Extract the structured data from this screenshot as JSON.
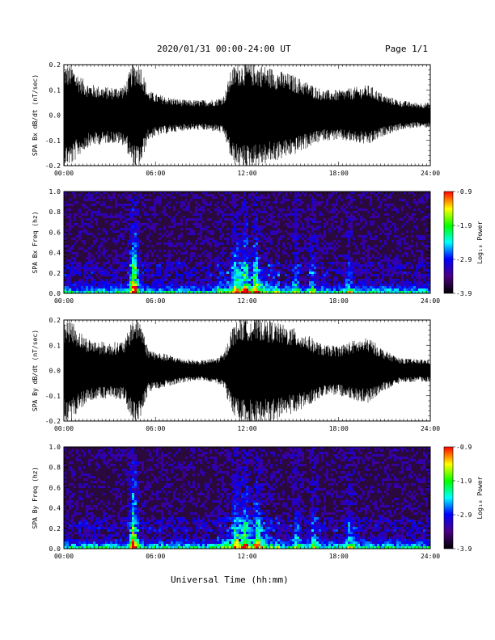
{
  "header": {
    "date_range": "2020/01/31  00:00-24:00 UT",
    "page": "Page 1/1"
  },
  "xaxis_title": "Universal Time (hh:mm)",
  "x_tick_labels": [
    "00:00",
    "06:00",
    "12:00",
    "18:00",
    "24:00"
  ],
  "colors": {
    "trace": "#000000",
    "spectrogram_background": "#2a0a3c",
    "colorbar": [
      "#000000",
      "#4b0082",
      "#0000ff",
      "#00ffff",
      "#00ff00",
      "#ffff00",
      "#ff0000"
    ]
  },
  "chart_data": [
    {
      "type": "line",
      "ylabel": "SPA Bx dB/dt (nT/sec)",
      "xlim": [
        0,
        24
      ],
      "ylim": [
        -0.2,
        0.2
      ],
      "yticks": [
        -0.2,
        -0.1,
        0.0,
        0.1,
        0.2
      ],
      "ytick_labels": [
        "-0.2",
        "-0.1",
        "0.0",
        "0.1",
        "0.2"
      ],
      "amplitude_envelope": {
        "x_hours": [
          0,
          0.5,
          1,
          1.5,
          2,
          3,
          4,
          4.5,
          5,
          5.5,
          6,
          7,
          8,
          9,
          10,
          10.5,
          11,
          11.5,
          12,
          13,
          14,
          15,
          16,
          17,
          18,
          19,
          20,
          21,
          22,
          23,
          24
        ],
        "half_range": [
          0.2,
          0.2,
          0.16,
          0.13,
          0.12,
          0.11,
          0.12,
          0.21,
          0.21,
          0.1,
          0.085,
          0.07,
          0.06,
          0.06,
          0.065,
          0.08,
          0.19,
          0.21,
          0.21,
          0.2,
          0.18,
          0.16,
          0.13,
          0.1,
          0.1,
          0.11,
          0.12,
          0.08,
          0.06,
          0.05,
          0.05
        ]
      }
    },
    {
      "type": "heatmap",
      "ylabel": "SPA Bx Freq (hz)",
      "xlim": [
        0,
        24
      ],
      "ylim": [
        0.0,
        1.0
      ],
      "yticks": [
        0.0,
        0.2,
        0.4,
        0.6,
        0.8,
        1.0
      ],
      "ytick_labels": [
        "0.0",
        "0.2",
        "0.4",
        "0.6",
        "0.8",
        "1.0"
      ],
      "colorbar": {
        "label": "Log₁₀ Power",
        "ticks": [
          "-0.9",
          "-1.9",
          "-2.9",
          "-3.9"
        ],
        "range": [
          -3.9,
          -0.9
        ]
      },
      "activity_hours": [
        {
          "hour": 4.5,
          "strength": 1.0
        },
        {
          "hour": 11.2,
          "strength": 0.55
        },
        {
          "hour": 11.8,
          "strength": 0.65
        },
        {
          "hour": 12.5,
          "strength": 0.6
        },
        {
          "hour": 15.1,
          "strength": 0.35
        },
        {
          "hour": 16.2,
          "strength": 0.4
        },
        {
          "hour": 18.6,
          "strength": 0.35
        }
      ]
    },
    {
      "type": "line",
      "ylabel": "SPA By dB/dt (nT/sec)",
      "xlim": [
        0,
        24
      ],
      "ylim": [
        -0.2,
        0.2
      ],
      "yticks": [
        -0.2,
        -0.1,
        0.0,
        0.1,
        0.2
      ],
      "ytick_labels": [
        "-0.2",
        "-0.1",
        "0.0",
        "0.1",
        "0.2"
      ],
      "amplitude_envelope": {
        "x_hours": [
          0,
          0.5,
          1,
          1.5,
          2,
          3,
          4,
          4.5,
          5,
          5.5,
          6,
          7,
          8,
          9,
          10,
          10.5,
          11,
          11.5,
          12,
          13,
          14,
          15,
          16,
          17,
          18,
          19,
          20,
          21,
          22,
          23,
          24
        ],
        "half_range": [
          0.2,
          0.2,
          0.16,
          0.13,
          0.12,
          0.11,
          0.12,
          0.21,
          0.21,
          0.09,
          0.075,
          0.06,
          0.045,
          0.04,
          0.05,
          0.07,
          0.17,
          0.21,
          0.21,
          0.21,
          0.19,
          0.17,
          0.14,
          0.1,
          0.1,
          0.12,
          0.13,
          0.08,
          0.05,
          0.045,
          0.045
        ]
      }
    },
    {
      "type": "heatmap",
      "ylabel": "SPA By Freq (hz)",
      "xlim": [
        0,
        24
      ],
      "ylim": [
        0.0,
        1.0
      ],
      "yticks": [
        0.0,
        0.2,
        0.4,
        0.6,
        0.8,
        1.0
      ],
      "ytick_labels": [
        "0.0",
        "0.2",
        "0.4",
        "0.6",
        "0.8",
        "1.0"
      ],
      "colorbar": {
        "label": "Log₁₀ Power",
        "ticks": [
          "-0.9",
          "-1.9",
          "-2.9",
          "-3.9"
        ],
        "range": [
          -3.9,
          -0.9
        ]
      },
      "activity_hours": [
        {
          "hour": 4.5,
          "strength": 1.0
        },
        {
          "hour": 11.2,
          "strength": 0.55
        },
        {
          "hour": 11.8,
          "strength": 0.65
        },
        {
          "hour": 12.6,
          "strength": 0.6
        },
        {
          "hour": 15.2,
          "strength": 0.35
        },
        {
          "hour": 16.3,
          "strength": 0.4
        },
        {
          "hour": 18.7,
          "strength": 0.35
        }
      ]
    }
  ]
}
